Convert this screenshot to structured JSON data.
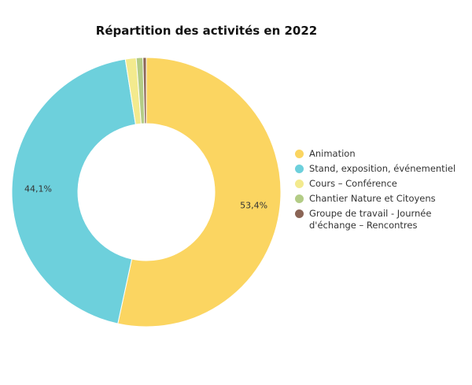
{
  "chart_data": {
    "type": "pie",
    "variant": "donut",
    "title": "Répartition des activités en 2022",
    "legend_position": "right",
    "slices": [
      {
        "name": "Animation",
        "value": 53.4,
        "label": "53,4%",
        "color": "#fbd561"
      },
      {
        "name": "Stand, exposition, événementiel",
        "value": 44.1,
        "label": "44,1%",
        "color": "#6dd0dc"
      },
      {
        "name": "Cours – Conférence",
        "value": 1.3,
        "label": "",
        "color": "#f3ea8e"
      },
      {
        "name": "Chantier Nature et Citoyens",
        "value": 0.8,
        "label": "",
        "color": "#b3cc86"
      },
      {
        "name": "Groupe de travail - Journée d'échange – Rencontres",
        "value": 0.4,
        "label": "",
        "color": "#8b6556"
      }
    ]
  }
}
